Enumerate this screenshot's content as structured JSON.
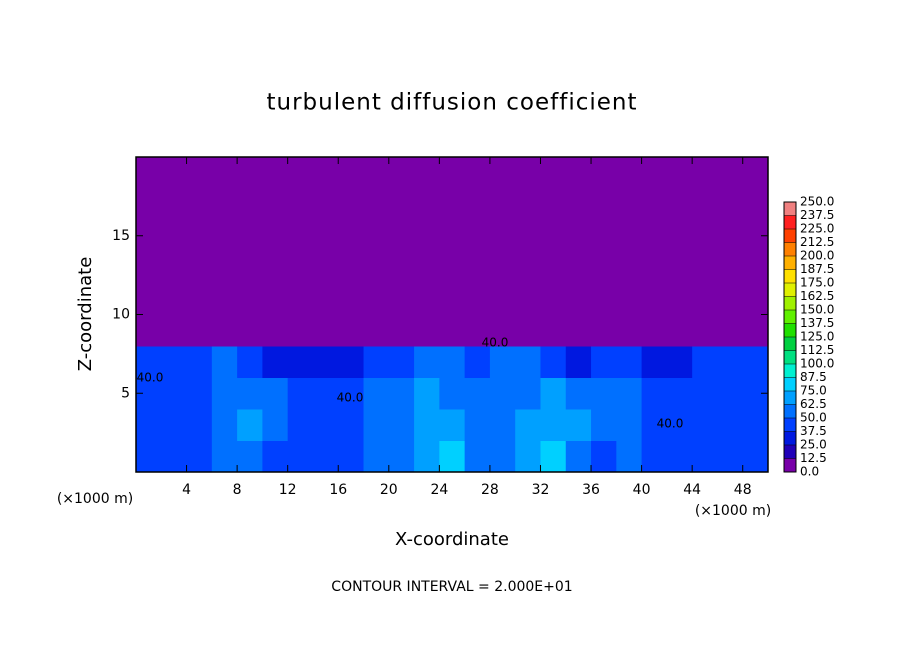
{
  "chart_data": {
    "type": "heatmap",
    "title": "turbulent diffusion coefficient",
    "x_label": "X-coordinate",
    "y_label": "Z-coordinate",
    "x_unit": "(×1000 m)",
    "y_unit": "(×1000 m)",
    "footer": "CONTOUR INTERVAL = 2.000E+01",
    "x": [
      1,
      3,
      5,
      7,
      9,
      11,
      13,
      15,
      17,
      19,
      21,
      23,
      25,
      27,
      29,
      31,
      33,
      35,
      37,
      39,
      41,
      43,
      45,
      47,
      49
    ],
    "y": [
      1,
      3,
      5,
      7,
      9,
      11,
      13,
      15,
      17,
      19
    ],
    "values": [
      [
        40,
        40,
        45,
        55,
        60,
        45,
        40,
        40,
        45,
        50,
        60,
        70,
        80,
        55,
        60,
        70,
        75,
        60,
        45,
        55,
        40,
        40,
        40,
        45,
        40
      ],
      [
        40,
        40,
        45,
        60,
        65,
        50,
        40,
        40,
        45,
        55,
        60,
        70,
        65,
        50,
        55,
        65,
        70,
        65,
        50,
        55,
        45,
        40,
        40,
        45,
        40
      ],
      [
        45,
        40,
        40,
        55,
        60,
        55,
        45,
        40,
        40,
        50,
        55,
        65,
        60,
        55,
        60,
        60,
        65,
        60,
        55,
        55,
        45,
        40,
        40,
        40,
        40
      ],
      [
        40,
        40,
        40,
        50,
        40,
        30,
        35,
        30,
        30,
        40,
        45,
        55,
        50,
        45,
        60,
        50,
        40,
        30,
        40,
        40,
        30,
        35,
        40,
        45,
        40
      ],
      [
        0,
        0,
        0,
        0,
        0,
        0,
        0,
        0,
        0,
        0,
        0,
        0,
        0,
        0,
        0,
        0,
        0,
        0,
        0,
        0,
        0,
        0,
        0,
        0,
        0
      ],
      [
        0,
        0,
        0,
        0,
        0,
        0,
        0,
        0,
        0,
        0,
        0,
        0,
        0,
        0,
        0,
        0,
        0,
        0,
        0,
        0,
        0,
        0,
        0,
        0,
        0
      ],
      [
        0,
        0,
        0,
        0,
        0,
        0,
        0,
        0,
        0,
        0,
        0,
        0,
        0,
        0,
        0,
        0,
        0,
        0,
        0,
        0,
        0,
        0,
        0,
        0,
        0
      ],
      [
        0,
        0,
        0,
        0,
        0,
        0,
        0,
        0,
        0,
        0,
        0,
        0,
        0,
        0,
        0,
        0,
        0,
        0,
        0,
        0,
        0,
        0,
        0,
        0,
        0
      ],
      [
        0,
        0,
        0,
        0,
        0,
        0,
        0,
        0,
        0,
        0,
        0,
        0,
        0,
        0,
        0,
        0,
        0,
        0,
        0,
        0,
        0,
        0,
        0,
        0,
        0
      ],
      [
        0,
        0,
        0,
        0,
        0,
        0,
        0,
        0,
        0,
        0,
        0,
        0,
        0,
        0,
        0,
        0,
        0,
        0,
        0,
        0,
        0,
        0,
        0,
        0,
        0
      ]
    ],
    "xlim": [
      0,
      50
    ],
    "ylim": [
      0,
      20
    ],
    "xticks": [
      4,
      8,
      12,
      16,
      20,
      24,
      28,
      32,
      36,
      40,
      44,
      48
    ],
    "yticks": [
      5,
      10,
      15
    ],
    "contour_labels": [
      "40.0",
      "40.0",
      "40.0",
      "40.0"
    ],
    "colorbar": {
      "levels": [
        {
          "value": 0,
          "label": "0.0"
        },
        {
          "value": 12.5,
          "label": "12.5"
        },
        {
          "value": 25,
          "label": "25.0"
        },
        {
          "value": 37.5,
          "label": "37.5"
        },
        {
          "value": 50,
          "label": "50.0"
        },
        {
          "value": 62.5,
          "label": "62.5"
        },
        {
          "value": 75,
          "label": "75.0"
        },
        {
          "value": 87.5,
          "label": "87.5"
        },
        {
          "value": 100,
          "label": "100.0"
        },
        {
          "value": 112.5,
          "label": "112.5"
        },
        {
          "value": 125,
          "label": "125.0"
        },
        {
          "value": 137.5,
          "label": "137.5"
        },
        {
          "value": 150,
          "label": "150.0"
        },
        {
          "value": 162.5,
          "label": "162.5"
        },
        {
          "value": 175,
          "label": "175.0"
        },
        {
          "value": 187.5,
          "label": "187.5"
        },
        {
          "value": 200,
          "label": "200.0"
        },
        {
          "value": 212.5,
          "label": "212.5"
        },
        {
          "value": 225,
          "label": "225.0"
        },
        {
          "value": 237.5,
          "label": "237.5"
        },
        {
          "value": 250,
          "label": "250.0"
        }
      ],
      "colors": [
        "#7800a8",
        "#2000b8",
        "#0018e0",
        "#0040ff",
        "#0070ff",
        "#00a0ff",
        "#00d0ff",
        "#00f0d0",
        "#00e080",
        "#00d040",
        "#20e000",
        "#60f000",
        "#a0f000",
        "#e0f000",
        "#ffe000",
        "#ffb000",
        "#ff8000",
        "#ff4000",
        "#ff2020",
        "#f08080"
      ]
    }
  }
}
